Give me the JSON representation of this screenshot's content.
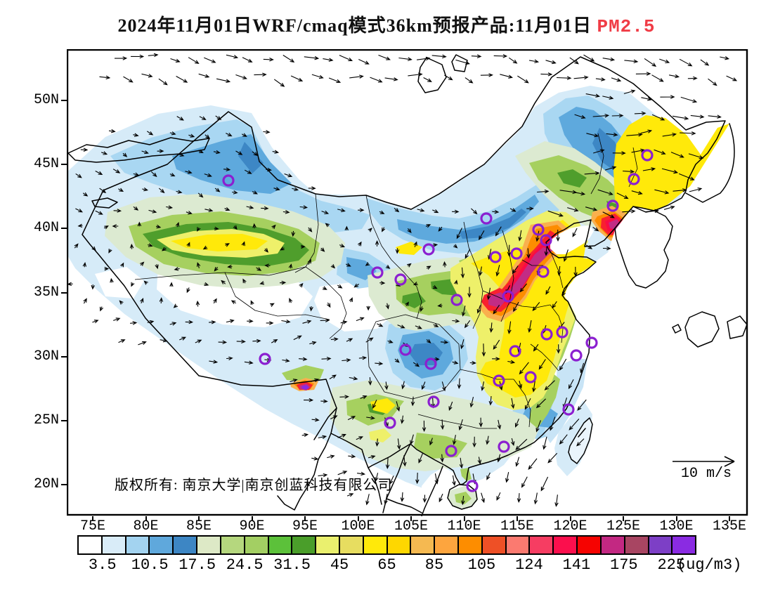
{
  "title": {
    "text": "2024年11月01日WRF/cmaq模式36km预报产品:11月01日 ",
    "pollutant": "PM2.5"
  },
  "axes": {
    "lat_labels": [
      "50N",
      "45N",
      "40N",
      "35N",
      "30N",
      "25N",
      "20N"
    ],
    "lon_labels": [
      "75E",
      "80E",
      "85E",
      "90E",
      "95E",
      "100E",
      "105E",
      "110E",
      "115E",
      "120E",
      "125E",
      "130E",
      "135E"
    ]
  },
  "annotations": {
    "copyright": "版权所有: 南京大学|南京创蓝科技有限公司",
    "wind_legend": "10 m/s"
  },
  "colorbar": {
    "unit": "(ug/m3)",
    "tick_labels": [
      "3.5",
      "10.5",
      "17.5",
      "24.5",
      "31.5",
      "45",
      "65",
      "85",
      "105",
      "124",
      "141",
      "175",
      "225"
    ],
    "colors": [
      "#ffffff",
      "#d9ecf8",
      "#a3d3f0",
      "#5fa8dc",
      "#3d86c4",
      "#dde9c6",
      "#b5d77e",
      "#a3cf63",
      "#5cc13a",
      "#4a9e2a",
      "#eaf06e",
      "#e7dd60",
      "#ffe90a",
      "#fed700",
      "#f5b951",
      "#fda53e",
      "#fd8d00",
      "#ee5026",
      "#fb7a70",
      "#f63d62",
      "#fb0f4d",
      "#f60301",
      "#c32882",
      "#a84562",
      "#7d3fc6",
      "#8a2be2"
    ]
  },
  "stations": {
    "color": "#8b1fd0",
    "points": [
      [
        230,
        187
      ],
      [
        597,
        241
      ],
      [
        671,
        257
      ],
      [
        682,
        272
      ],
      [
        640,
        291
      ],
      [
        610,
        296
      ],
      [
        678,
        317
      ],
      [
        628,
        352
      ],
      [
        555,
        357
      ],
      [
        515,
        285
      ],
      [
        442,
        318
      ],
      [
        475,
        328
      ],
      [
        826,
        151
      ],
      [
        807,
        185
      ],
      [
        777,
        223
      ],
      [
        683,
        406
      ],
      [
        705,
        403
      ],
      [
        747,
        418
      ],
      [
        725,
        436
      ],
      [
        638,
        430
      ],
      [
        660,
        467
      ],
      [
        615,
        472
      ],
      [
        714,
        513
      ],
      [
        482,
        428
      ],
      [
        518,
        448
      ],
      [
        522,
        502
      ],
      [
        460,
        532
      ],
      [
        282,
        441
      ],
      [
        547,
        572
      ],
      [
        622,
        566
      ],
      [
        577,
        622
      ]
    ]
  },
  "wind": {
    "arrow_color": "#000000"
  }
}
